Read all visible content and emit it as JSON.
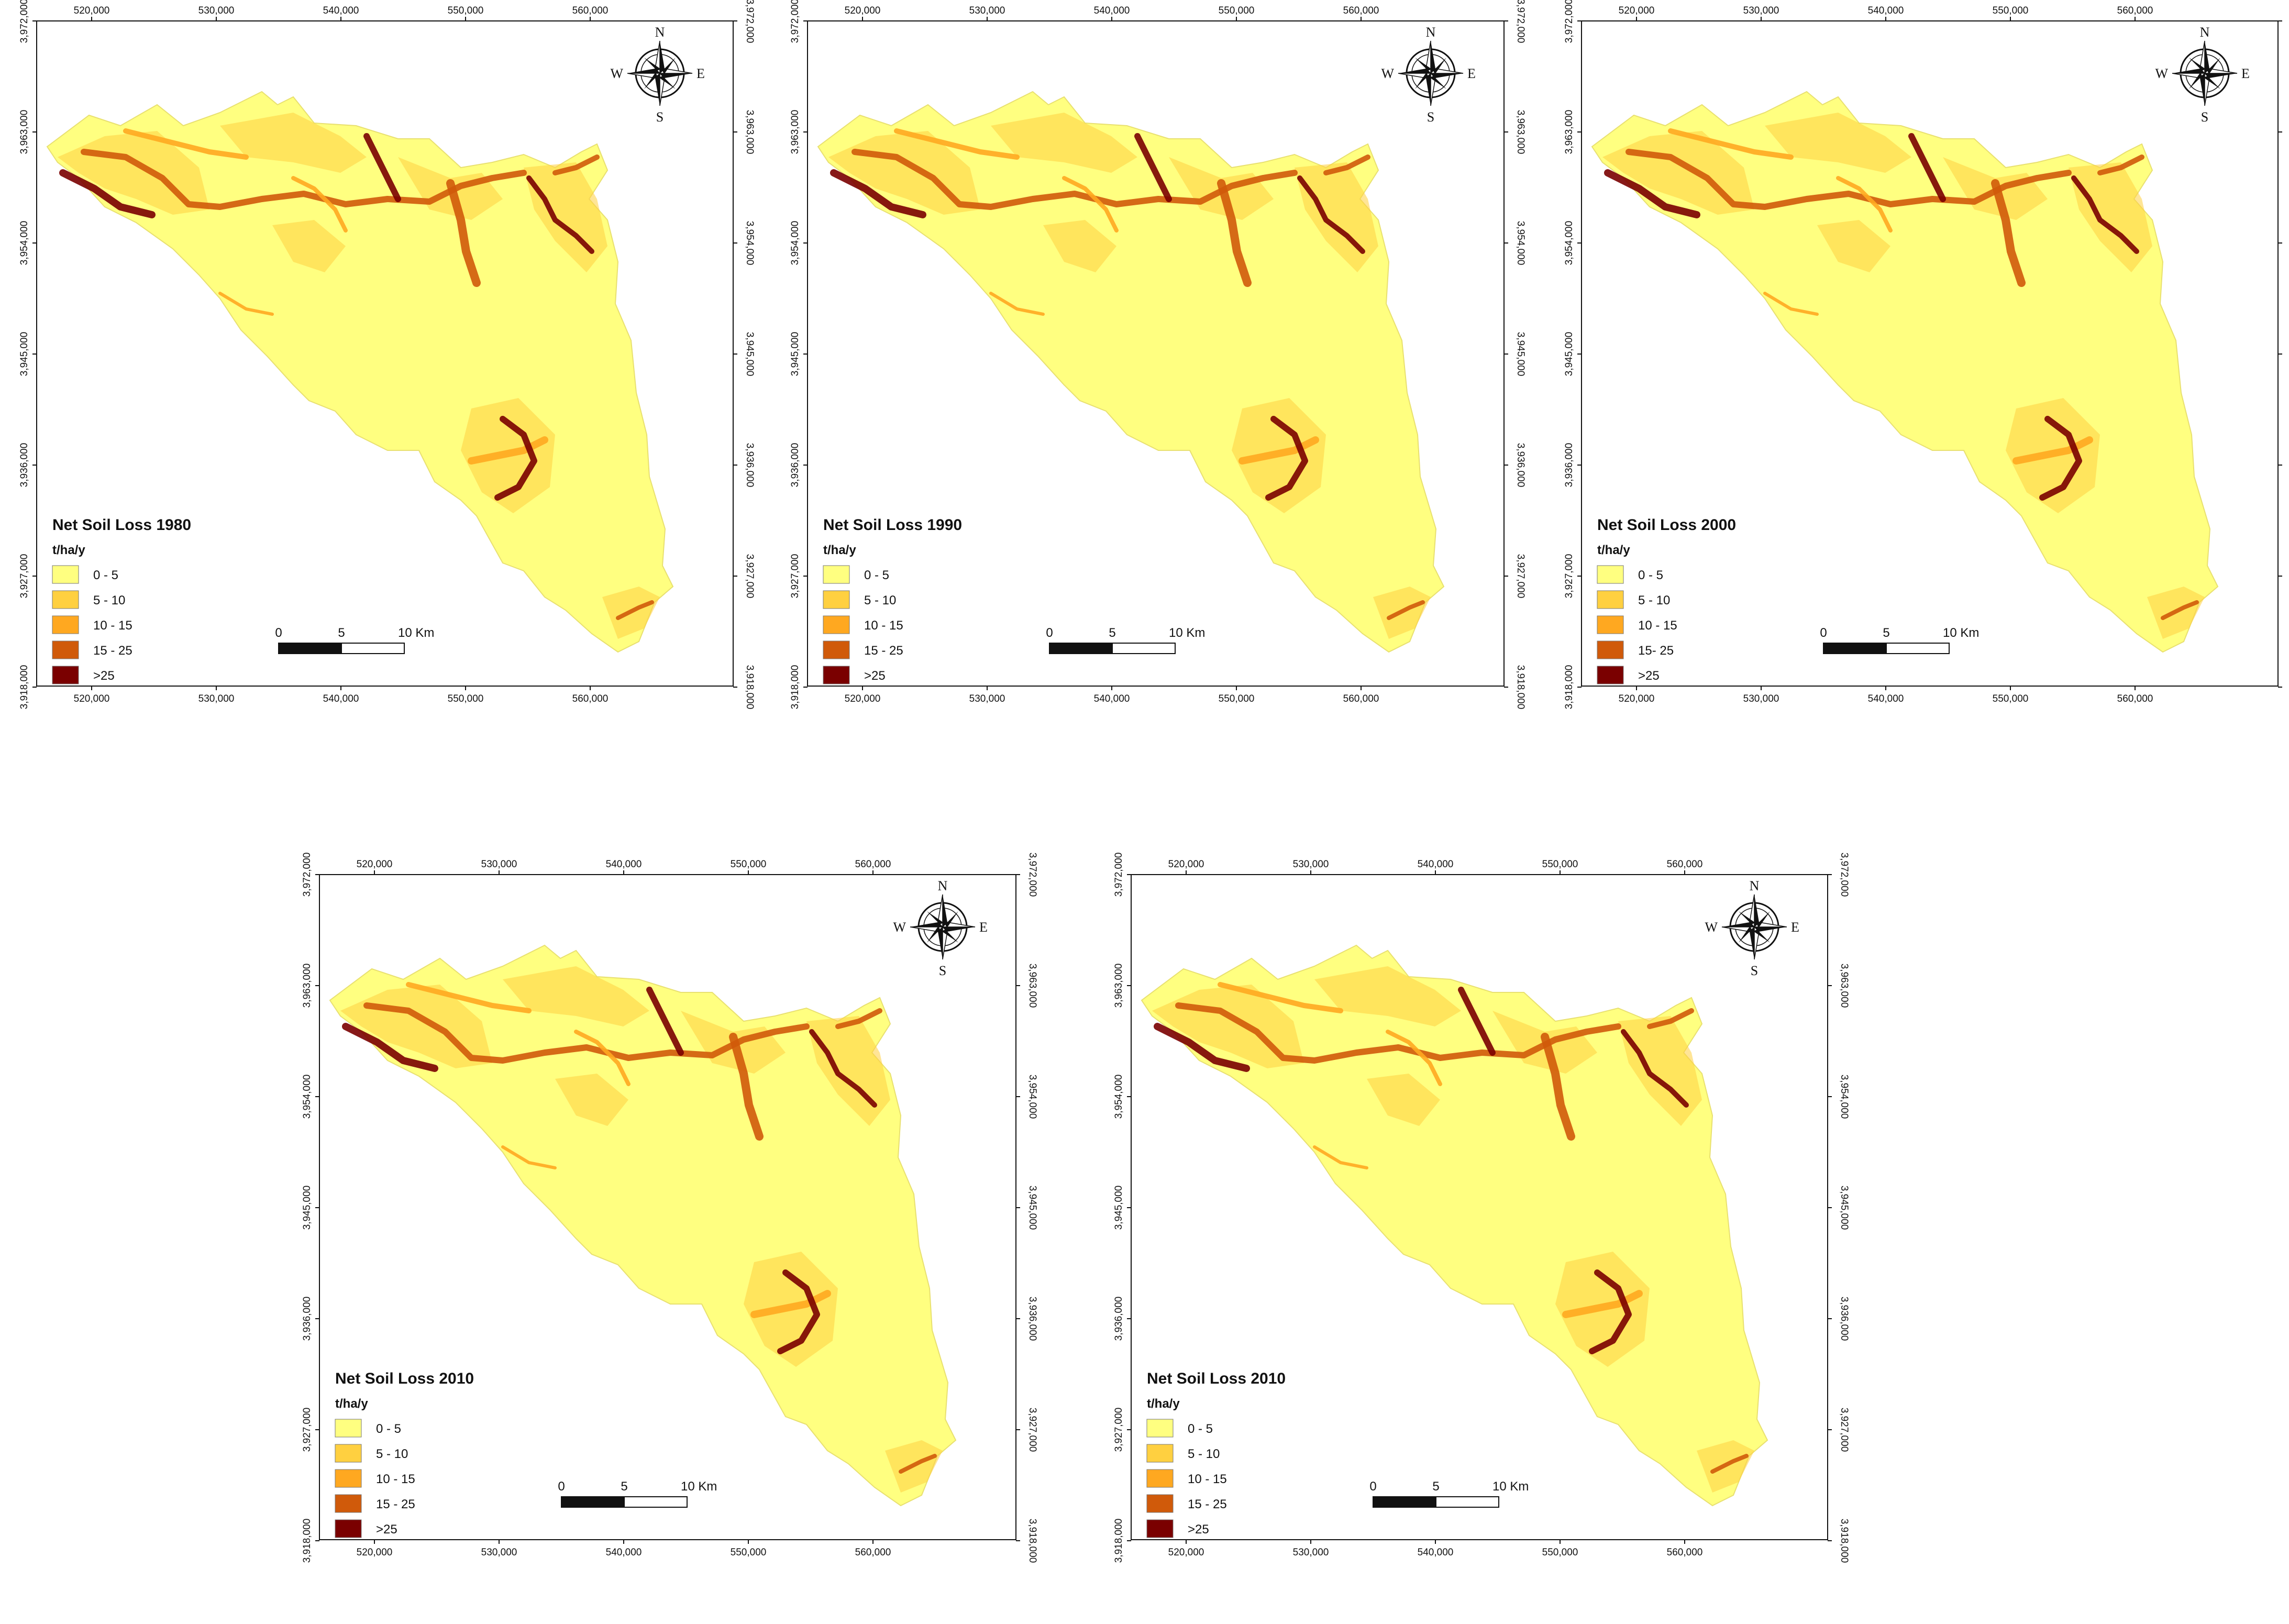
{
  "figure": {
    "colors": {
      "class_0_5": "#ffff80",
      "class_5_10": "#ffd040",
      "class_10_15": "#ffa820",
      "class_15_25": "#d05a0a",
      "class_gt25": "#7a0000",
      "frame": "#111111"
    },
    "x_ticks": [
      "520,000",
      "530,000",
      "540,000",
      "550,000",
      "560,000"
    ],
    "y_ticks": [
      "3,972,000",
      "3,963,000",
      "3,954,000",
      "3,945,000",
      "3,936,000",
      "3,927,000",
      "3,918,000"
    ],
    "compass": {
      "n": "N",
      "s": "S",
      "e": "E",
      "w": "W"
    },
    "legend_unit": "t/ha/y",
    "scale": {
      "zero": "0",
      "mid": "5",
      "end": "10 Km"
    },
    "panels": [
      {
        "title": "Net Soil Loss 1980",
        "classes": [
          "0 - 5",
          "5 - 10",
          "10 - 15",
          "15 - 25",
          ">25"
        ]
      },
      {
        "title": "Net Soil Loss 1990",
        "classes": [
          "0 - 5",
          "5 - 10",
          "10 - 15",
          "15 - 25",
          ">25"
        ]
      },
      {
        "title": "Net Soil Loss 2000",
        "classes": [
          "0 - 5",
          "5 - 10",
          "10 - 15",
          "15- 25",
          ">25"
        ]
      },
      {
        "title": "Net Soil Loss 2010",
        "classes": [
          "0 - 5",
          "5 - 10",
          "10 - 15",
          "15 - 25",
          ">25"
        ]
      },
      {
        "title": "Net Soil Loss 2010",
        "classes": [
          "0 - 5",
          "5 - 10",
          "10 - 15",
          "15 - 25",
          ">25"
        ]
      }
    ]
  }
}
